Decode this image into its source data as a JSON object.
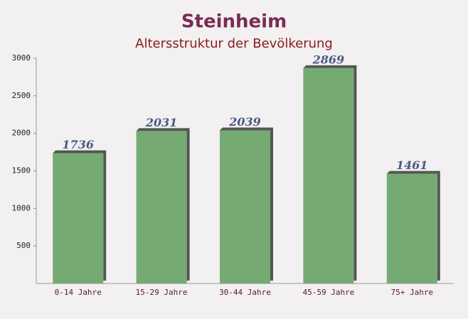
{
  "chart_data": {
    "type": "bar",
    "title": "Steinheim",
    "subtitle": "Altersstruktur der Bevölkerung",
    "categories": [
      "0-14 Jahre",
      "15-29 Jahre",
      "30-44 Jahre",
      "45-59 Jahre",
      "75+ Jahre"
    ],
    "values": [
      1736,
      2031,
      2039,
      2869,
      1461
    ],
    "color": "#6ea66a",
    "ylim": [
      0,
      3000
    ],
    "yticks": [
      500,
      1000,
      1500,
      2000,
      2500,
      3000
    ],
    "grid": false
  }
}
